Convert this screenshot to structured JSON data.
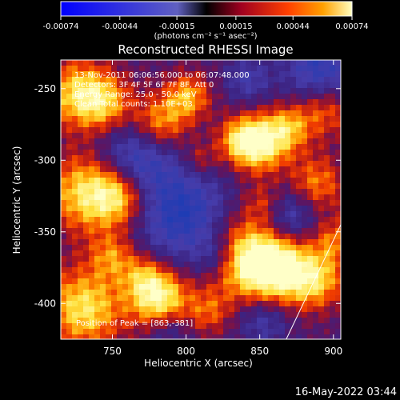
{
  "footer_timestamp": "16-May-2022 03:44",
  "colorbar": {
    "tick_labels": [
      "-0.00074",
      "-0.00044",
      "-0.00015",
      "0.00015",
      "0.00044",
      "0.00074"
    ],
    "unit_label": "(photons cm⁻² s⁻¹ asec⁻²)",
    "range": [
      -0.00074,
      0.00074
    ]
  },
  "chart_data": {
    "type": "heatmap",
    "title": "Reconstructed RHESSI Image",
    "xlabel": "Heliocentric X (arcsec)",
    "ylabel": "Heliocentric Y (arcsec)",
    "xlim": [
      715,
      905
    ],
    "ylim": [
      -425,
      -230
    ],
    "x_ticks": [
      750,
      800,
      850,
      900
    ],
    "y_ticks": [
      -250,
      -300,
      -350,
      -400
    ],
    "annotations": [
      "13-Nov-2011 06:06:56.000 to 06:07:48.000",
      "Detectors: 3F 4F 5F 6F 7F 8F, Att 0",
      "Energy Range: 25.0 - 50.0 keV",
      "Clean    Total counts: 1.10E+03"
    ],
    "peak_label": "Position of Peak = [863,-381]",
    "peak_position": [
      863,
      -381
    ],
    "limb_line": [
      [
        868,
        -425
      ],
      [
        905,
        -345
      ]
    ]
  }
}
